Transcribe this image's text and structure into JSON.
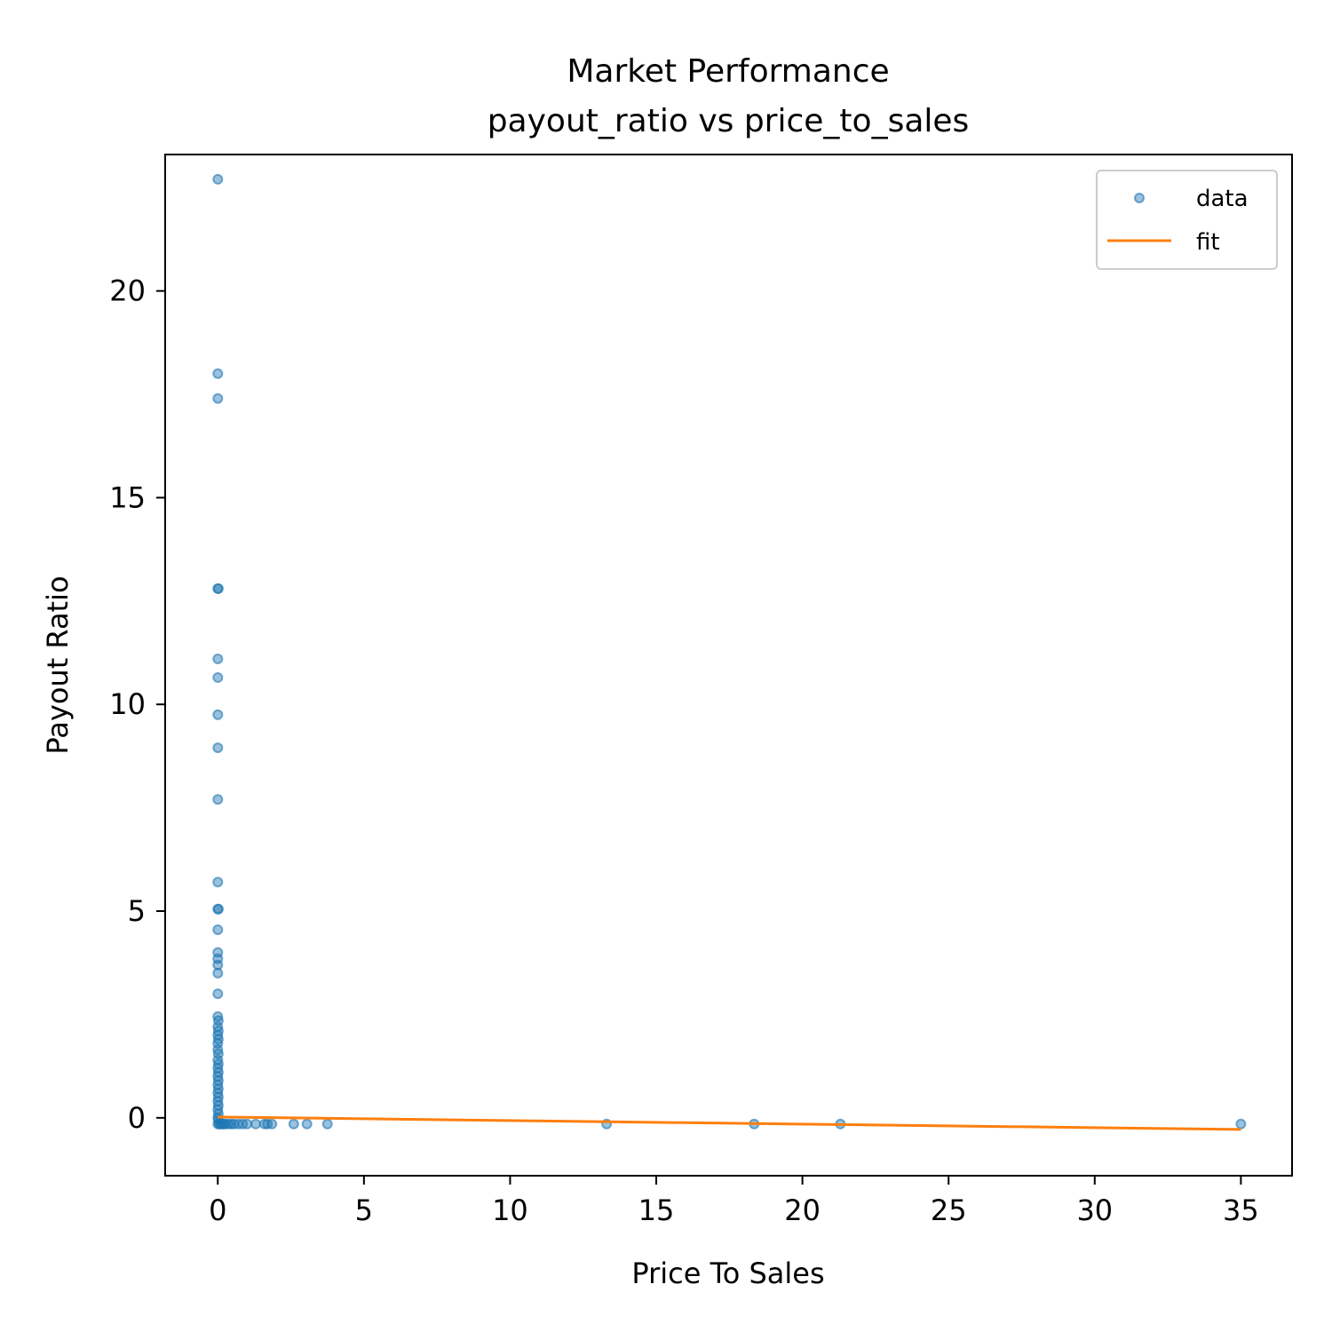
{
  "chart_data": {
    "type": "scatter",
    "title": "Market Performance",
    "subtitle": "payout_ratio vs price_to_sales",
    "xlabel": "Price To Sales",
    "ylabel": "Payout Ratio",
    "xlim": [
      -1.8,
      36.75
    ],
    "ylim": [
      -1.4,
      23.3
    ],
    "xticks": [
      0,
      5,
      10,
      15,
      20,
      25,
      30,
      35
    ],
    "yticks": [
      0,
      5,
      10,
      15,
      20
    ],
    "grid": false,
    "legend_position": "top-right",
    "colors": {
      "data": "#1f77b4",
      "fit": "#ff7f0e"
    },
    "series": [
      {
        "name": "data",
        "kind": "scatter",
        "points": [
          [
            0,
            22.7
          ],
          [
            0,
            18.0
          ],
          [
            0,
            17.4
          ],
          [
            0,
            12.8
          ],
          [
            0.02,
            12.8
          ],
          [
            0,
            11.1
          ],
          [
            0,
            10.65
          ],
          [
            0,
            9.75
          ],
          [
            0,
            8.95
          ],
          [
            0,
            7.7
          ],
          [
            0,
            5.7
          ],
          [
            0,
            5.05
          ],
          [
            0.02,
            5.05
          ],
          [
            0,
            4.55
          ],
          [
            0,
            4.0
          ],
          [
            0,
            3.85
          ],
          [
            0,
            3.7
          ],
          [
            0,
            3.5
          ],
          [
            0,
            3.0
          ],
          [
            0,
            2.45
          ],
          [
            0.02,
            2.35
          ],
          [
            0,
            2.2
          ],
          [
            0.02,
            2.1
          ],
          [
            0,
            2.0
          ],
          [
            0.02,
            1.9
          ],
          [
            0,
            1.8
          ],
          [
            0,
            1.65
          ],
          [
            0.02,
            1.55
          ],
          [
            0,
            1.4
          ],
          [
            0.02,
            1.3
          ],
          [
            0,
            1.2
          ],
          [
            0.02,
            1.1
          ],
          [
            0,
            1.0
          ],
          [
            0.02,
            0.9
          ],
          [
            0,
            0.8
          ],
          [
            0.02,
            0.7
          ],
          [
            0,
            0.6
          ],
          [
            0.02,
            0.5
          ],
          [
            0,
            0.4
          ],
          [
            0.02,
            0.3
          ],
          [
            0,
            0.2
          ],
          [
            0.02,
            0.1
          ],
          [
            0,
            0.0
          ],
          [
            0.02,
            -0.05
          ],
          [
            0,
            -0.15
          ],
          [
            0.05,
            -0.15
          ],
          [
            0.1,
            -0.15
          ],
          [
            0.15,
            -0.15
          ],
          [
            0.2,
            -0.15
          ],
          [
            0.25,
            -0.15
          ],
          [
            0.35,
            -0.15
          ],
          [
            0.45,
            -0.15
          ],
          [
            0.55,
            -0.15
          ],
          [
            0.7,
            -0.15
          ],
          [
            0.85,
            -0.15
          ],
          [
            1.0,
            -0.15
          ],
          [
            1.3,
            -0.15
          ],
          [
            1.6,
            -0.15
          ],
          [
            1.7,
            -0.15
          ],
          [
            1.85,
            -0.15
          ],
          [
            2.6,
            -0.15
          ],
          [
            3.05,
            -0.15
          ],
          [
            3.75,
            -0.15
          ],
          [
            13.3,
            -0.15
          ],
          [
            18.35,
            -0.15
          ],
          [
            21.3,
            -0.15
          ],
          [
            35.0,
            -0.15
          ]
        ]
      },
      {
        "name": "fit",
        "kind": "line",
        "points": [
          [
            0,
            0.02
          ],
          [
            35.0,
            -0.28
          ]
        ]
      }
    ]
  }
}
